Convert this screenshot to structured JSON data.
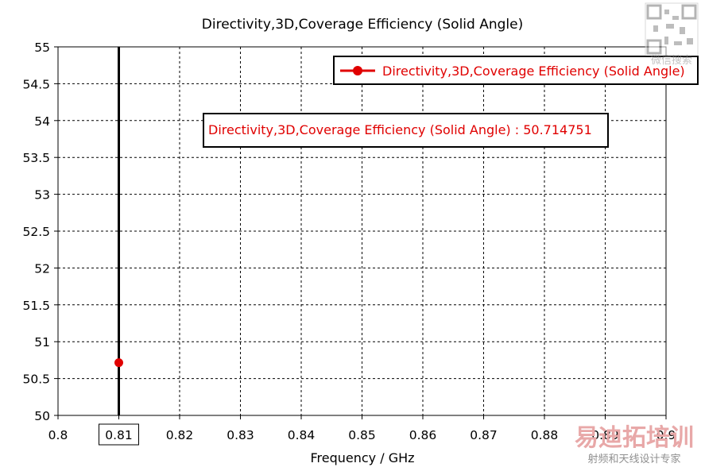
{
  "chart_data": {
    "type": "scatter",
    "title": "Directivity,3D,Coverage Efficiency (Solid Angle)",
    "xlabel": "Frequency / GHz",
    "ylabel": "",
    "xlim": [
      0.8,
      0.9
    ],
    "ylim": [
      50,
      55
    ],
    "x_ticks": [
      "0.8",
      "0.81",
      "0.82",
      "0.83",
      "0.84",
      "0.85",
      "0.86",
      "0.87",
      "0.88",
      "0.89",
      "0.9"
    ],
    "y_ticks": [
      "50",
      "50.5",
      "51",
      "51.5",
      "52",
      "52.5",
      "53",
      "53.5",
      "54",
      "54.5",
      "55"
    ],
    "grid": true,
    "legend_position": "top-right",
    "series": [
      {
        "name": "Directivity,3D,Coverage Efficiency (Solid Angle)",
        "color": "#e00000",
        "x": [
          0.81
        ],
        "y": [
          50.714751
        ]
      }
    ],
    "marker_line": {
      "x": 0.81,
      "color": "#000000"
    },
    "marker_x_label": "0.81",
    "annotation": "Directivity,3D,Coverage Efficiency (Solid Angle) : 50.714751"
  },
  "watermark": {
    "main": "易迪拓培训",
    "sub": "射频和天线设计专家",
    "qr_caption": "微信搜索"
  }
}
